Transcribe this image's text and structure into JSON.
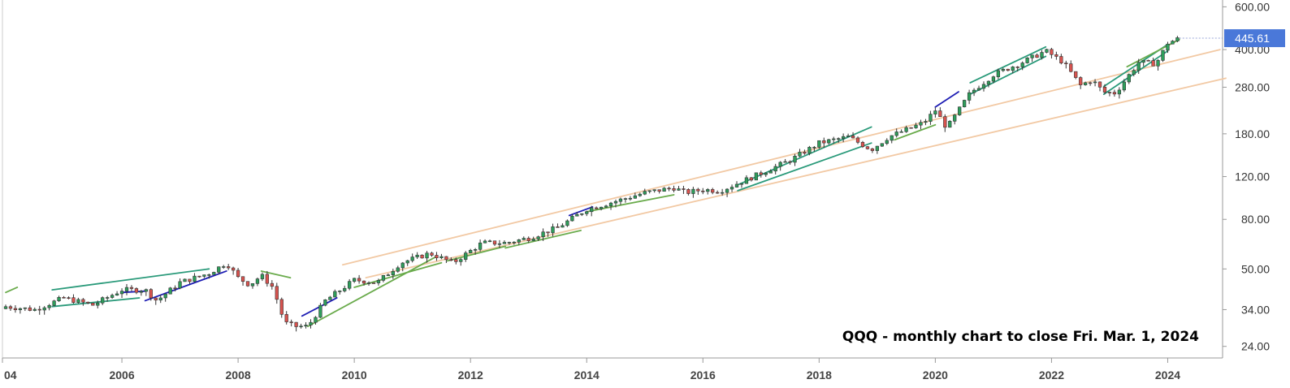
{
  "chart_data": {
    "type": "candlestick",
    "scale": "log",
    "caption": "QQQ - monthly chart to close Fri. Mar. 1, 2024",
    "last_price_label": "445.61",
    "last_price": 445.61,
    "y_ticks": [
      {
        "value": 24,
        "label": "24.00"
      },
      {
        "value": 34,
        "label": "34.00"
      },
      {
        "value": 50,
        "label": "50.00"
      },
      {
        "value": 80,
        "label": "80.00"
      },
      {
        "value": 120,
        "label": "120.00"
      },
      {
        "value": 180,
        "label": "180.00"
      },
      {
        "value": 280,
        "label": "280.00"
      },
      {
        "value": 400,
        "label": "400.00"
      },
      {
        "value": 600,
        "label": "600.00"
      }
    ],
    "x_ticks": [
      {
        "year": 2004,
        "label": "04"
      },
      {
        "year": 2006,
        "label": "2006"
      },
      {
        "year": 2008,
        "label": "2008"
      },
      {
        "year": 2010,
        "label": "2010"
      },
      {
        "year": 2012,
        "label": "2012"
      },
      {
        "year": 2014,
        "label": "2014"
      },
      {
        "year": 2016,
        "label": "2016"
      },
      {
        "year": 2018,
        "label": "2018"
      },
      {
        "year": 2020,
        "label": "2020"
      },
      {
        "year": 2022,
        "label": "2022"
      },
      {
        "year": 2024,
        "label": "2024"
      }
    ],
    "x_range": [
      2004.0,
      2025.0
    ],
    "y_range": [
      21.5,
      640
    ],
    "monthly_close_anchors": [
      {
        "t": 2004.0,
        "v": 35
      },
      {
        "t": 2004.5,
        "v": 34
      },
      {
        "t": 2005.0,
        "v": 38
      },
      {
        "t": 2005.5,
        "v": 35.5
      },
      {
        "t": 2006.0,
        "v": 41
      },
      {
        "t": 2006.4,
        "v": 41
      },
      {
        "t": 2006.6,
        "v": 37
      },
      {
        "t": 2007.0,
        "v": 44
      },
      {
        "t": 2007.5,
        "v": 48
      },
      {
        "t": 2007.8,
        "v": 53
      },
      {
        "t": 2008.0,
        "v": 46
      },
      {
        "t": 2008.2,
        "v": 43
      },
      {
        "t": 2008.4,
        "v": 47
      },
      {
        "t": 2008.6,
        "v": 42
      },
      {
        "t": 2008.8,
        "v": 30
      },
      {
        "t": 2009.0,
        "v": 29
      },
      {
        "t": 2009.2,
        "v": 29
      },
      {
        "t": 2009.5,
        "v": 37
      },
      {
        "t": 2010.0,
        "v": 45
      },
      {
        "t": 2010.4,
        "v": 44
      },
      {
        "t": 2010.8,
        "v": 53
      },
      {
        "t": 2011.3,
        "v": 58
      },
      {
        "t": 2011.7,
        "v": 53
      },
      {
        "t": 2012.2,
        "v": 64
      },
      {
        "t": 2012.6,
        "v": 64
      },
      {
        "t": 2013.0,
        "v": 67
      },
      {
        "t": 2013.5,
        "v": 74
      },
      {
        "t": 2014.0,
        "v": 88
      },
      {
        "t": 2014.5,
        "v": 95
      },
      {
        "t": 2015.0,
        "v": 103
      },
      {
        "t": 2015.5,
        "v": 108
      },
      {
        "t": 2015.7,
        "v": 103
      },
      {
        "t": 2016.0,
        "v": 106
      },
      {
        "t": 2016.3,
        "v": 105
      },
      {
        "t": 2016.8,
        "v": 118
      },
      {
        "t": 2017.5,
        "v": 140
      },
      {
        "t": 2018.0,
        "v": 165
      },
      {
        "t": 2018.5,
        "v": 175
      },
      {
        "t": 2018.9,
        "v": 155
      },
      {
        "t": 2019.2,
        "v": 175
      },
      {
        "t": 2019.8,
        "v": 200
      },
      {
        "t": 2020.0,
        "v": 225
      },
      {
        "t": 2020.2,
        "v": 190
      },
      {
        "t": 2020.6,
        "v": 265
      },
      {
        "t": 2021.0,
        "v": 315
      },
      {
        "t": 2021.5,
        "v": 355
      },
      {
        "t": 2021.9,
        "v": 395
      },
      {
        "t": 2022.2,
        "v": 355
      },
      {
        "t": 2022.5,
        "v": 285
      },
      {
        "t": 2022.7,
        "v": 300
      },
      {
        "t": 2022.9,
        "v": 267
      },
      {
        "t": 2023.1,
        "v": 265
      },
      {
        "t": 2023.5,
        "v": 355
      },
      {
        "t": 2023.8,
        "v": 350
      },
      {
        "t": 2024.0,
        "v": 426
      },
      {
        "t": 2024.2,
        "v": 445
      }
    ],
    "trendlines": [
      {
        "color": "#f2c9a4",
        "x1": 2009.8,
        "v1": 52,
        "x2": 2024.9,
        "v2": 400
      },
      {
        "color": "#f2c9a4",
        "x1": 2010.2,
        "v1": 46,
        "x2": 2025.0,
        "v2": 305
      },
      {
        "color": "#2a9a7a",
        "x1": 2004.8,
        "v1": 41,
        "x2": 2007.5,
        "v2": 50
      },
      {
        "color": "#2a9a7a",
        "x1": 2004.8,
        "v1": 35,
        "x2": 2006.3,
        "v2": 38
      },
      {
        "color": "#2a9a7a",
        "x1": 2016.6,
        "v1": 111,
        "x2": 2018.9,
        "v2": 192
      },
      {
        "color": "#2a9a7a",
        "x1": 2016.6,
        "v1": 105,
        "x2": 2018.9,
        "v2": 165
      },
      {
        "color": "#2a9a7a",
        "x1": 2020.6,
        "v1": 292,
        "x2": 2021.9,
        "v2": 410
      },
      {
        "color": "#2a9a7a",
        "x1": 2020.6,
        "v1": 262,
        "x2": 2021.9,
        "v2": 375
      },
      {
        "color": "#2a9a7a",
        "x1": 2022.9,
        "v1": 282,
        "x2": 2024.0,
        "v2": 420
      },
      {
        "color": "#2a9a7a",
        "x1": 2022.9,
        "v1": 262,
        "x2": 2024.0,
        "v2": 395
      },
      {
        "color": "#6aab4c",
        "x1": 2009.2,
        "v1": 29,
        "x2": 2011.4,
        "v2": 56
      },
      {
        "color": "#6aab4c",
        "x1": 2010.0,
        "v1": 42,
        "x2": 2011.5,
        "v2": 53
      },
      {
        "color": "#6aab4c",
        "x1": 2011.6,
        "v1": 54,
        "x2": 2012.6,
        "v2": 62
      },
      {
        "color": "#6aab4c",
        "x1": 2012.6,
        "v1": 61,
        "x2": 2013.9,
        "v2": 72
      },
      {
        "color": "#6aab4c",
        "x1": 2014.0,
        "v1": 86,
        "x2": 2015.5,
        "v2": 101
      },
      {
        "color": "#6aab4c",
        "x1": 2019.3,
        "v1": 170,
        "x2": 2020.0,
        "v2": 196
      },
      {
        "color": "#6aab4c",
        "x1": 2023.3,
        "v1": 340,
        "x2": 2024.2,
        "v2": 440
      },
      {
        "color": "#6aab4c",
        "x1": 2008.4,
        "v1": 49,
        "x2": 2008.9,
        "v2": 46
      },
      {
        "color": "#6aab4c",
        "x1": 2004.0,
        "v1": 40,
        "x2": 2004.2,
        "v2": 42
      },
      {
        "color": "#1e1eb4",
        "x1": 2006.4,
        "v1": 37,
        "x2": 2007.8,
        "v2": 49
      },
      {
        "color": "#1e1eb4",
        "x1": 2009.1,
        "v1": 32,
        "x2": 2009.7,
        "v2": 38
      },
      {
        "color": "#1e1eb4",
        "x1": 2013.7,
        "v1": 83,
        "x2": 2014.1,
        "v2": 90
      },
      {
        "color": "#1e1eb4",
        "x1": 2020.0,
        "v1": 232,
        "x2": 2020.4,
        "v2": 268
      },
      {
        "color": "#1e1eb4",
        "x1": 2006.0,
        "v1": 40,
        "x2": 2006.4,
        "v2": 40.5
      }
    ],
    "colors": {
      "up": "#2e9e5b",
      "down": "#d9534f",
      "badge": "#4a78d9",
      "axis": "#999999",
      "text": "#333333"
    }
  }
}
